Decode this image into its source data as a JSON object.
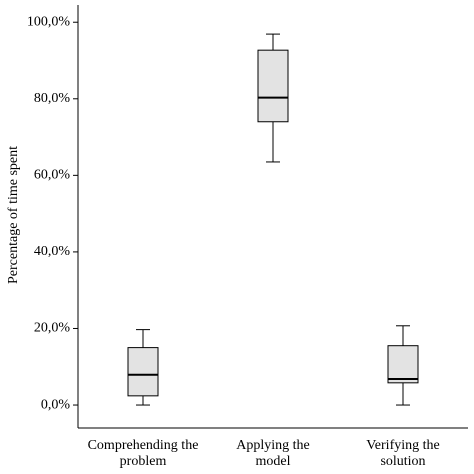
{
  "chart_data": {
    "type": "box",
    "y_label": "Percentage of time spent",
    "categories": [
      [
        "Comprehending the",
        "problem"
      ],
      [
        "Applying the",
        "model"
      ],
      [
        "Verifying the",
        "solution"
      ]
    ],
    "min": [
      0,
      63.5,
      0
    ],
    "q1": [
      2.4,
      74.0,
      5.8
    ],
    "median": [
      7.9,
      80.3,
      6.8
    ],
    "q3": [
      15.0,
      92.7,
      15.5
    ],
    "max": [
      19.7,
      96.9,
      20.7
    ],
    "color": "#e3e3e3",
    "ylim": [
      -6,
      104.5
    ],
    "yticks": [
      {
        "value": 0,
        "label": "0,0%"
      },
      {
        "value": 20,
        "label": "20,0%"
      },
      {
        "value": 40,
        "label": "40,0%"
      },
      {
        "value": 60,
        "label": "60,0%"
      },
      {
        "value": 80,
        "label": "80,0%"
      },
      {
        "value": 100,
        "label": "100,0%"
      }
    ]
  }
}
